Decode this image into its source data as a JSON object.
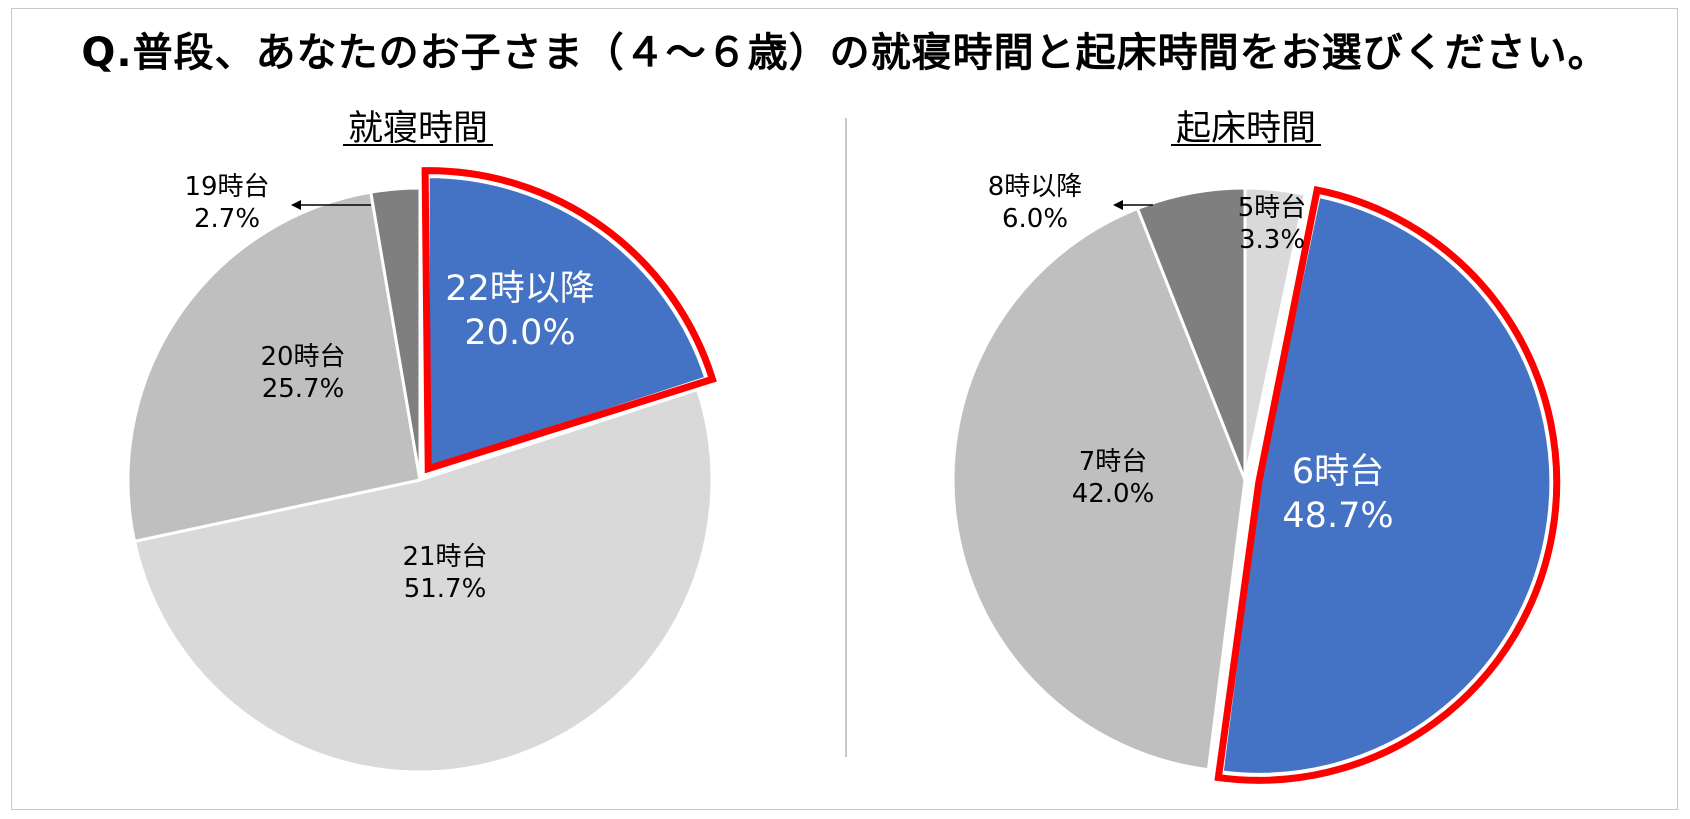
{
  "title": "Q.普段、あなたのお子さま（４～６歳）の就寝時間と起床時間をお選びください。",
  "colors": {
    "highlight_fill": "#4472C4",
    "highlight_border": "#FF0000",
    "light_gray": "#D9D9D9",
    "mid_gray": "#BFBFBF",
    "dark_gray": "#7F7F7F",
    "divider": "#C8C8C8"
  },
  "chart_data": [
    {
      "type": "pie",
      "title": "就寝時間",
      "start": "12 o'clock, clockwise",
      "highlighted": "22時以降",
      "slices": [
        {
          "label": "22時以降",
          "value": 20.0,
          "value_text": "20.0%",
          "color": "#4472C4"
        },
        {
          "label": "21時台",
          "value": 51.7,
          "value_text": "51.7%",
          "color": "#D9D9D9"
        },
        {
          "label": "20時台",
          "value": 25.7,
          "value_text": "25.7%",
          "color": "#BFBFBF"
        },
        {
          "label": "19時台",
          "value": 2.7,
          "value_text": "2.7%",
          "color": "#7F7F7F"
        }
      ]
    },
    {
      "type": "pie",
      "title": "起床時間",
      "start": "12 o'clock, clockwise",
      "highlighted": "6時台",
      "slices": [
        {
          "label": "5時台",
          "value": 3.3,
          "value_text": "3.3%",
          "color": "#D9D9D9"
        },
        {
          "label": "6時台",
          "value": 48.7,
          "value_text": "48.7%",
          "color": "#4472C4"
        },
        {
          "label": "7時台",
          "value": 42.0,
          "value_text": "42.0%",
          "color": "#BFBFBF"
        },
        {
          "label": "8時以降",
          "value": 6.0,
          "value_text": "6.0%",
          "color": "#7F7F7F"
        }
      ]
    }
  ]
}
